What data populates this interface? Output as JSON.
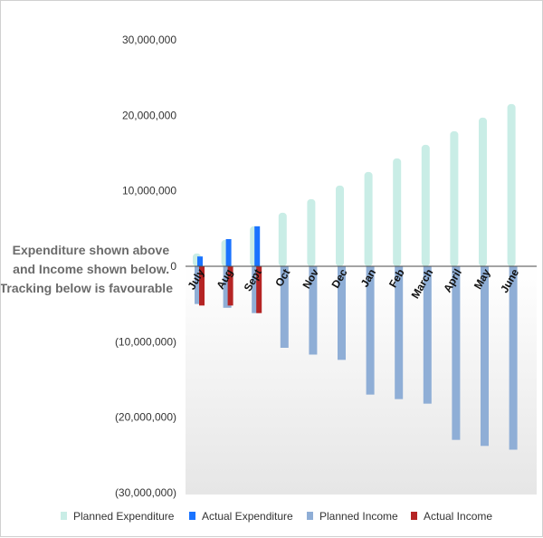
{
  "chart_data": {
    "type": "bar",
    "categories": [
      "July",
      "Aug",
      "Sept",
      "Oct",
      "Nov",
      "Dec",
      "Jan",
      "Feb",
      "March",
      "April",
      "May",
      "June"
    ],
    "series": [
      {
        "name": "Planned Expenditure",
        "color": "#c9ede6",
        "values": [
          1700000,
          3500000,
          5300000,
          7100000,
          8900000,
          10700000,
          12500000,
          14300000,
          16100000,
          17900000,
          19700000,
          21500000
        ]
      },
      {
        "name": "Actual Expenditure",
        "color": "#1a73ff",
        "values": [
          1300000,
          3600000,
          5300000,
          null,
          null,
          null,
          null,
          null,
          null,
          null,
          null,
          null
        ]
      },
      {
        "name": "Planned Income",
        "color": "#8faed6",
        "values": [
          -5000000,
          -5500000,
          -6200000,
          -10800000,
          -11700000,
          -12400000,
          -17000000,
          -17600000,
          -18200000,
          -23000000,
          -23800000,
          -24300000
        ]
      },
      {
        "name": "Actual Income",
        "color": "#b52424",
        "values": [
          -5200000,
          -5200000,
          -6200000,
          null,
          null,
          null,
          null,
          null,
          null,
          null,
          null,
          null
        ]
      }
    ],
    "y_ticks": [
      30000000,
      20000000,
      10000000,
      0,
      -10000000,
      -20000000,
      -30000000
    ],
    "y_tick_labels": [
      "30,000,000",
      "20,000,000",
      "10,000,000",
      "0",
      "(10,000,000)",
      "(20,000,000)",
      "(30,000,000)"
    ],
    "ylim": [
      -30000000,
      30000000
    ],
    "annotation": [
      "Expenditure shown above",
      "and Income shown below.",
      "Tracking below is favourable"
    ],
    "legend_position": "bottom",
    "grid": false
  }
}
